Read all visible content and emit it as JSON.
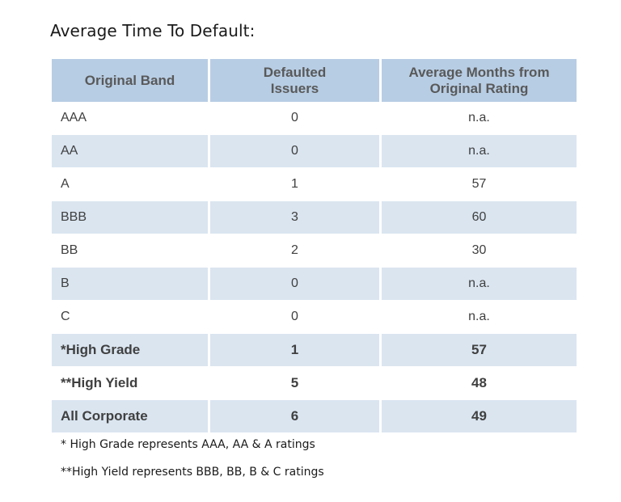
{
  "title": "Average Time To Default:",
  "table": {
    "headers": [
      "Original Band",
      "Defaulted Issuers",
      "Average Months from Original Rating"
    ],
    "header_lines": [
      [
        "Original Band"
      ],
      [
        "Defaulted",
        "Issuers"
      ],
      [
        "Average Months from",
        "Original Rating"
      ]
    ],
    "rows": [
      {
        "band": "AAA",
        "defaulted": "0",
        "avg_months": "n.a.",
        "shaded": false,
        "bold": false
      },
      {
        "band": "AA",
        "defaulted": "0",
        "avg_months": "n.a.",
        "shaded": true,
        "bold": false
      },
      {
        "band": "A",
        "defaulted": "1",
        "avg_months": "57",
        "shaded": false,
        "bold": false
      },
      {
        "band": "BBB",
        "defaulted": "3",
        "avg_months": "60",
        "shaded": true,
        "bold": false
      },
      {
        "band": "BB",
        "defaulted": "2",
        "avg_months": "30",
        "shaded": false,
        "bold": false
      },
      {
        "band": "B",
        "defaulted": "0",
        "avg_months": "n.a.",
        "shaded": true,
        "bold": false
      },
      {
        "band": "C",
        "defaulted": "0",
        "avg_months": "n.a.",
        "shaded": false,
        "bold": false
      },
      {
        "band": "*High Grade",
        "defaulted": "1",
        "avg_months": "57",
        "shaded": true,
        "bold": true
      },
      {
        "band": "**High Yield",
        "defaulted": "5",
        "avg_months": "48",
        "shaded": false,
        "bold": true
      },
      {
        "band": "All Corporate",
        "defaulted": "6",
        "avg_months": "49",
        "shaded": true,
        "bold": true
      }
    ]
  },
  "footnotes": [
    "* High Grade represents AAA, AA & A ratings",
    "**High Yield represents BBB, BB, B & C ratings"
  ],
  "colors": {
    "header_bg": "#b7cde4",
    "shaded_row_bg": "#dae5f0",
    "header_text": "#595959",
    "body_text": "#404040"
  }
}
